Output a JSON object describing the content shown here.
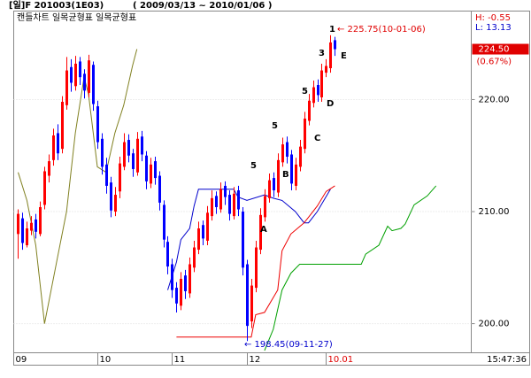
{
  "header": {
    "title": "[일]F 201003(1E03)",
    "range": "( 2009/03/13 ~ 2010/01/06 )"
  },
  "chart_data": {
    "type": "candlestick",
    "legend_text": "캔들차트 일목균형표 일목균형표",
    "high_text": "H: -0.55",
    "low_text": "L: 13.13",
    "current_price": {
      "value": 224.5,
      "label": "224.50"
    },
    "current_change": "(0.67%)",
    "time_text": "15:47:36",
    "xlim": [
      -1,
      103
    ],
    "xticks": [
      {
        "value": 0,
        "label": "09"
      },
      {
        "value": 19,
        "label": "10"
      },
      {
        "value": 36,
        "label": "11"
      },
      {
        "value": 53,
        "label": "12"
      },
      {
        "value": 71,
        "label": "10.01",
        "color": "#e00000"
      }
    ],
    "ylim": [
      197.4,
      227.9
    ],
    "yticks": [
      {
        "value": 200,
        "label": "200.00"
      },
      {
        "value": 210,
        "label": "210.00"
      },
      {
        "value": 220,
        "label": "220.00"
      }
    ],
    "grid": true,
    "up_color": "#ff0000",
    "down_color": "#0000ff",
    "candles": {
      "open": [
        208.0,
        209.4,
        207.0,
        208.3,
        209.3,
        208.0,
        210.6,
        213.2,
        214.6,
        217.0,
        215.6,
        219.5,
        222.9,
        221.2,
        223.4,
        222.3,
        220.6,
        223.1,
        219.4,
        216.5,
        214.2,
        212.6,
        210.0,
        211.8,
        214.0,
        216.4,
        215.2,
        213.5,
        216.7,
        215.0,
        212.5,
        214.5,
        213.2,
        210.6,
        207.3,
        205.3,
        203.2,
        201.6,
        204.3,
        202.7,
        205.0,
        206.6,
        208.8,
        207.4,
        209.6,
        211.4,
        210.2,
        212.3,
        211.5,
        209.6,
        211.9,
        210.0,
        205.3,
        200.2,
        203.2,
        206.6,
        209.5,
        211.2,
        213.0,
        211.7,
        214.4,
        216.2,
        215.1,
        212.3,
        214.0,
        215.6,
        218.1,
        219.7,
        221.3,
        220.2,
        222.4,
        222.8,
        225.3
      ],
      "high": [
        210.2,
        209.9,
        209.1,
        209.6,
        209.8,
        210.9,
        214.0,
        215.1,
        217.4,
        217.8,
        220.3,
        223.8,
        223.6,
        223.9,
        223.8,
        222.7,
        224.0,
        223.4,
        219.9,
        217.0,
        214.8,
        213.1,
        212.2,
        214.9,
        217.0,
        216.9,
        215.6,
        217.1,
        217.2,
        215.4,
        214.8,
        214.9,
        213.6,
        211.0,
        207.8,
        205.8,
        203.7,
        204.6,
        204.8,
        205.9,
        207.4,
        209.1,
        209.2,
        210.5,
        211.9,
        211.8,
        212.6,
        212.7,
        211.9,
        212.2,
        212.3,
        210.4,
        205.7,
        204.0,
        207.4,
        210.3,
        212.0,
        213.4,
        213.5,
        215.2,
        216.6,
        216.7,
        215.5,
        214.8,
        216.4,
        218.9,
        220.5,
        221.7,
        221.8,
        223.2,
        223.6,
        225.75,
        225.6
      ],
      "low": [
        205.8,
        206.6,
        206.8,
        207.9,
        207.6,
        207.8,
        210.2,
        212.6,
        214.1,
        214.6,
        215.2,
        219.1,
        220.7,
        220.8,
        221.3,
        220.1,
        220.2,
        219.0,
        215.6,
        213.3,
        211.6,
        209.5,
        209.6,
        211.2,
        213.7,
        214.4,
        213.1,
        213.2,
        214.5,
        212.0,
        212.1,
        212.4,
        210.1,
        206.8,
        204.4,
        202.3,
        201.0,
        201.2,
        202.2,
        202.3,
        204.6,
        206.2,
        207.0,
        207.0,
        209.2,
        209.8,
        209.9,
        210.6,
        209.2,
        209.3,
        209.6,
        204.3,
        198.45,
        199.6,
        202.8,
        206.2,
        209.1,
        210.8,
        211.3,
        211.3,
        214.0,
        214.3,
        211.9,
        211.9,
        213.6,
        215.2,
        217.7,
        219.3,
        219.8,
        219.8,
        222.0,
        222.4,
        223.9
      ],
      "close": [
        209.8,
        207.2,
        208.5,
        209.0,
        208.2,
        210.4,
        213.6,
        214.5,
        216.8,
        215.2,
        219.8,
        222.6,
        221.5,
        223.2,
        222.0,
        220.8,
        223.5,
        219.6,
        216.2,
        214.0,
        212.3,
        210.1,
        211.5,
        214.3,
        216.2,
        215.0,
        213.8,
        216.5,
        215.1,
        212.7,
        214.2,
        213.0,
        210.8,
        207.5,
        205.1,
        203.0,
        201.8,
        204.0,
        202.9,
        205.3,
        206.8,
        208.5,
        207.6,
        209.9,
        211.2,
        210.4,
        212.0,
        211.3,
        209.8,
        211.6,
        210.2,
        205.0,
        199.8,
        203.4,
        206.8,
        209.7,
        211.4,
        212.8,
        211.9,
        214.6,
        216.0,
        214.9,
        212.5,
        214.2,
        215.8,
        218.3,
        219.9,
        221.1,
        220.4,
        222.6,
        223.0,
        225.1,
        224.5
      ]
    },
    "lines": [
      {
        "color": "#808020",
        "x": [
          0,
          2,
          4,
          6,
          7,
          9,
          11,
          13,
          15,
          16,
          18,
          20,
          22,
          24,
          26,
          27
        ],
        "values": [
          213.5,
          211,
          207,
          200,
          202,
          206,
          210,
          217,
          222,
          220.5,
          214,
          213.5,
          217,
          219.5,
          223,
          224.5
        ]
      },
      {
        "color": "#0000cc",
        "x": [
          34,
          36,
          37,
          39,
          40,
          41,
          49,
          50,
          52,
          56,
          58,
          60,
          63,
          65,
          66,
          68,
          71
        ],
        "values": [
          203,
          205.5,
          207.5,
          208.5,
          210.5,
          212,
          212,
          211.3,
          211,
          211.5,
          211.2,
          211,
          210,
          209,
          209,
          210,
          212
        ]
      },
      {
        "color": "#ee0000",
        "x": [
          36,
          53,
          54,
          56,
          59,
          60,
          62,
          65,
          66,
          68,
          70,
          72
        ],
        "values": [
          198.8,
          198.8,
          200.8,
          201,
          203,
          206.5,
          208,
          209,
          209.5,
          210.5,
          211.8,
          212.3
        ]
      },
      {
        "color": "#00a000",
        "x": [
          56,
          58,
          60,
          62,
          64,
          78,
          79,
          82,
          84,
          85,
          87,
          88,
          90,
          93,
          95
        ],
        "values": [
          197.6,
          199.5,
          203,
          204.5,
          205.3,
          205.3,
          206.2,
          207,
          208.7,
          208.3,
          208.5,
          208.9,
          210.6,
          211.4,
          212.3
        ]
      }
    ],
    "annotations": [
      {
        "text": "1"
      },
      {
        "text": "← 225.75(10-01-06)",
        "color": "#e00000"
      },
      {
        "text": "3"
      },
      {
        "text": "E"
      },
      {
        "text": "5"
      },
      {
        "text": "D"
      },
      {
        "text": "5"
      },
      {
        "text": "C"
      },
      {
        "text": "5"
      },
      {
        "text": "B"
      },
      {
        "text": "A"
      },
      {
        "text": "← 198.45(09-11-27)",
        "color": "#0000cc"
      }
    ]
  }
}
